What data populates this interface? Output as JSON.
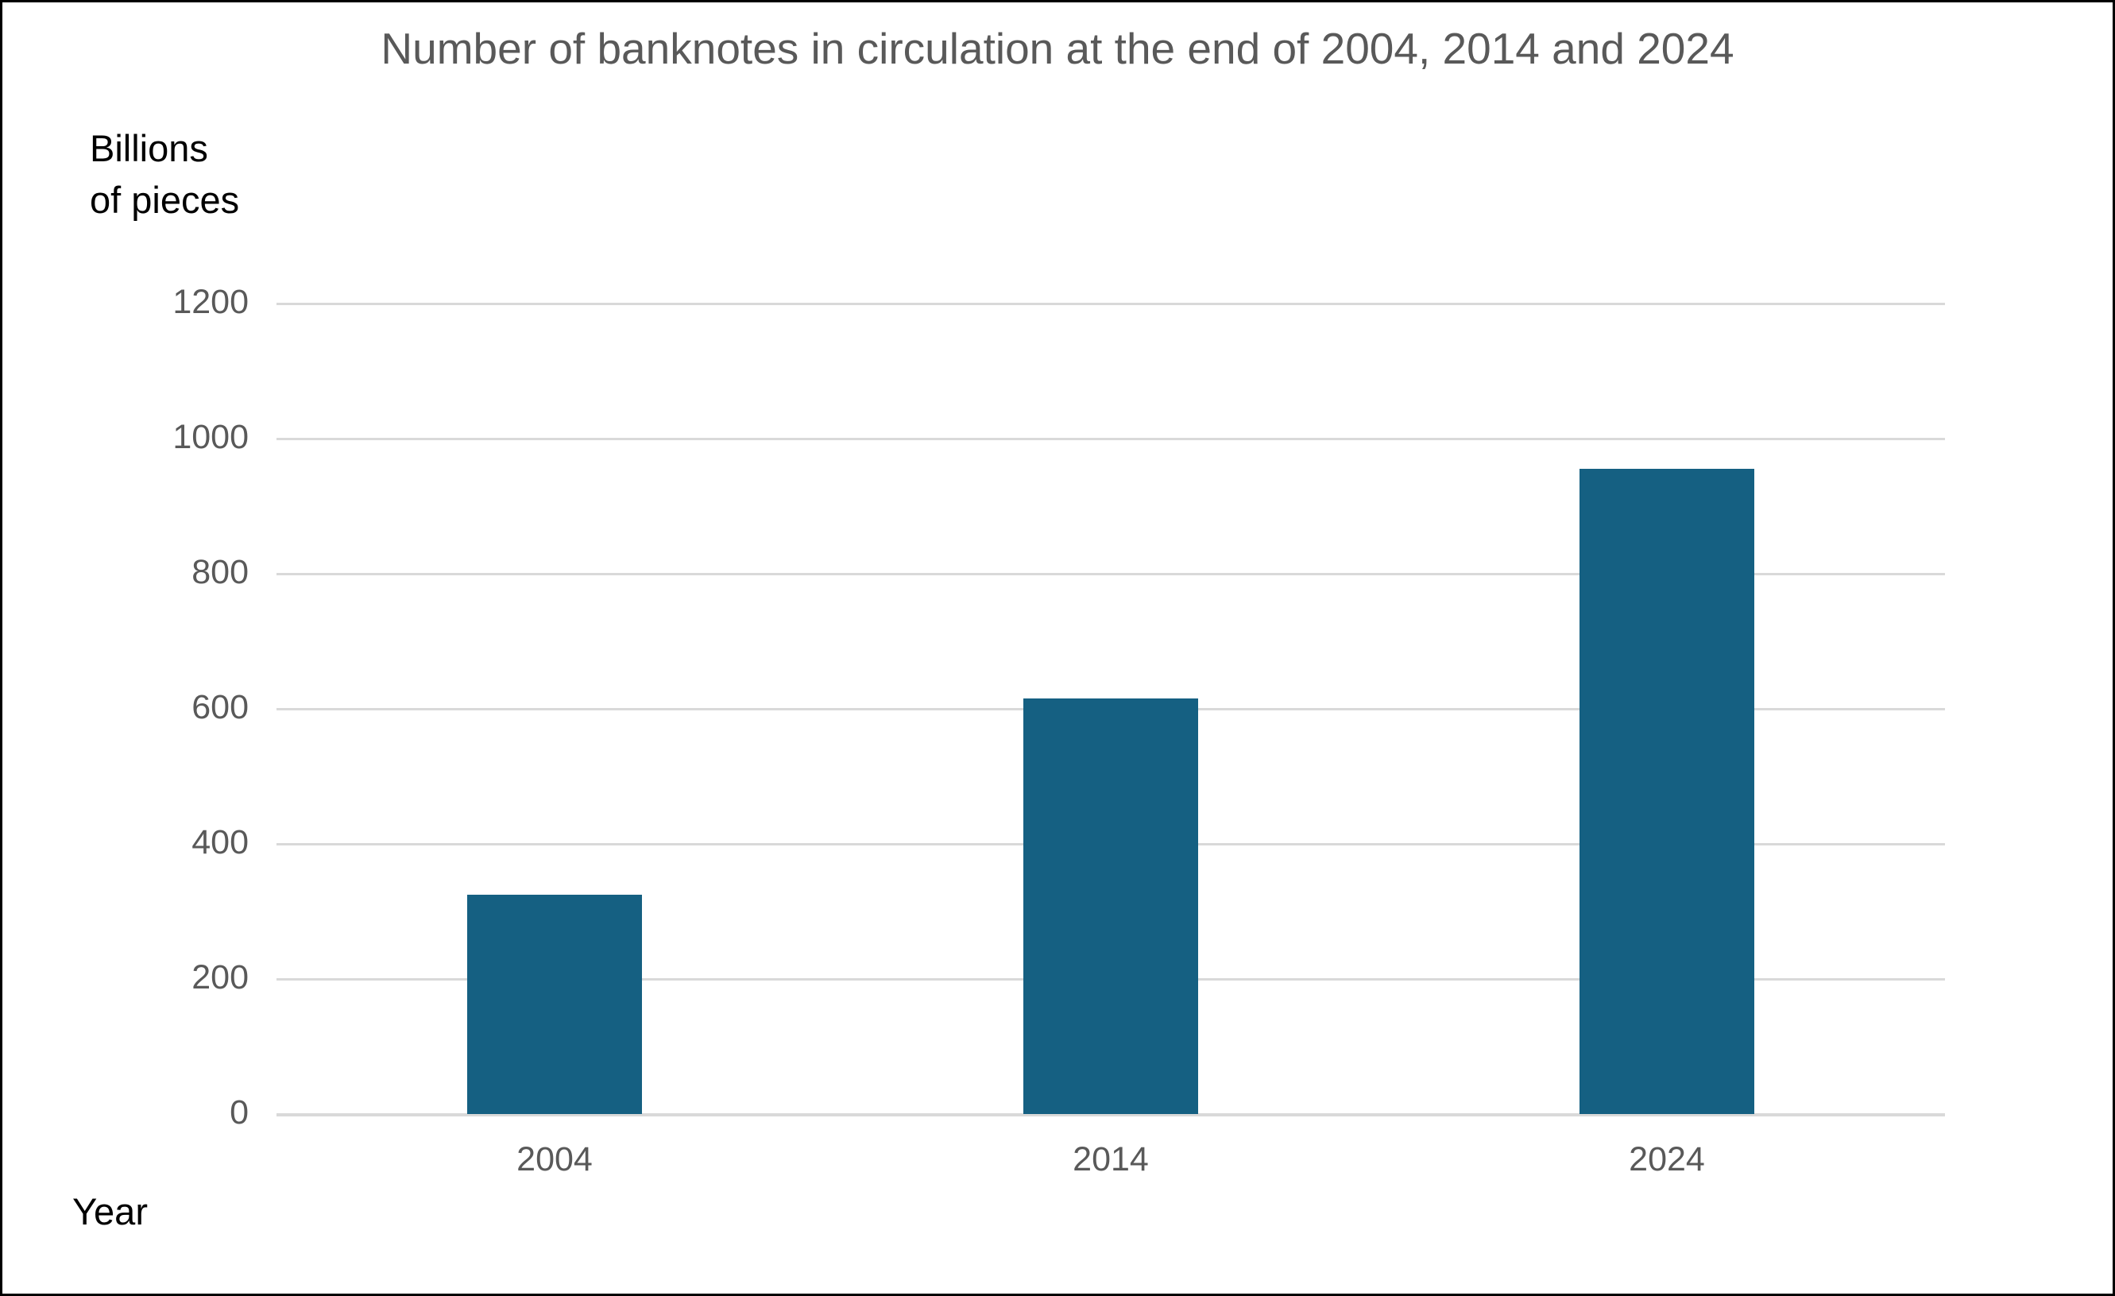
{
  "chart_data": {
    "type": "bar",
    "title": "Number of banknotes in circulation at the end of 2004, 2014 and 2024",
    "y_unit_label_lines": [
      "Billions",
      "of pieces"
    ],
    "xlabel": "Year",
    "categories": [
      "2004",
      "2014",
      "2024"
    ],
    "values": [
      325,
      615,
      955
    ],
    "y_ticks": [
      0,
      200,
      400,
      600,
      800,
      1000,
      1200
    ],
    "ylim": [
      0,
      1200
    ],
    "grid": true,
    "legend": false,
    "colors": {
      "bar": "#156082",
      "gridline": "#d9d9d9",
      "tick_label": "#595959",
      "title": "#595959",
      "axis_title_text": "#000000",
      "canvas_border": "#000000",
      "background": "#ffffff"
    }
  }
}
